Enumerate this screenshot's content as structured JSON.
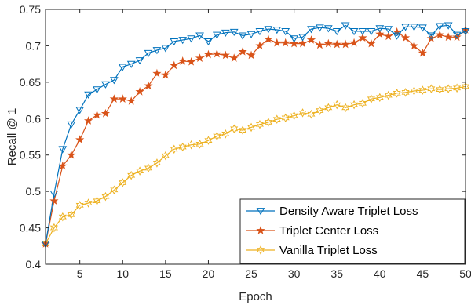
{
  "chart_data": {
    "type": "line",
    "xlabel": "Epoch",
    "ylabel": "Recall @ 1",
    "xlim": [
      1,
      50
    ],
    "ylim": [
      0.4,
      0.75
    ],
    "xticks": [
      5,
      10,
      15,
      20,
      25,
      30,
      35,
      40,
      45,
      50
    ],
    "yticks": [
      0.4,
      0.45,
      0.5,
      0.55,
      0.6,
      0.65,
      0.7,
      0.75
    ],
    "ytick_labels": [
      "0.4",
      "0.45",
      "0.5",
      "0.55",
      "0.6",
      "0.65",
      "0.7",
      "0.75"
    ],
    "grid": false,
    "legend_position": "bottom-right",
    "x": [
      1,
      2,
      3,
      4,
      5,
      6,
      7,
      8,
      9,
      10,
      11,
      12,
      13,
      14,
      15,
      16,
      17,
      18,
      19,
      20,
      21,
      22,
      23,
      24,
      25,
      26,
      27,
      28,
      29,
      30,
      31,
      32,
      33,
      34,
      35,
      36,
      37,
      38,
      39,
      40,
      41,
      42,
      43,
      44,
      45,
      46,
      47,
      48,
      49,
      50
    ],
    "series": [
      {
        "name": "Density Aware Triplet Loss",
        "color": "#0072BD",
        "marker": "triangle-down",
        "values": [
          0.428,
          0.497,
          0.558,
          0.592,
          0.612,
          0.633,
          0.64,
          0.647,
          0.653,
          0.671,
          0.675,
          0.68,
          0.69,
          0.694,
          0.697,
          0.706,
          0.708,
          0.71,
          0.714,
          0.706,
          0.715,
          0.718,
          0.719,
          0.714,
          0.716,
          0.72,
          0.723,
          0.722,
          0.72,
          0.71,
          0.712,
          0.723,
          0.725,
          0.724,
          0.72,
          0.728,
          0.72,
          0.72,
          0.72,
          0.724,
          0.723,
          0.714,
          0.726,
          0.726,
          0.725,
          0.714,
          0.727,
          0.728,
          0.715,
          0.72
        ]
      },
      {
        "name": "Triplet Center Loss",
        "color": "#D95319",
        "marker": "star",
        "values": [
          0.428,
          0.487,
          0.535,
          0.55,
          0.571,
          0.597,
          0.605,
          0.607,
          0.627,
          0.627,
          0.624,
          0.637,
          0.645,
          0.662,
          0.66,
          0.673,
          0.679,
          0.678,
          0.683,
          0.688,
          0.689,
          0.687,
          0.683,
          0.692,
          0.687,
          0.7,
          0.709,
          0.704,
          0.704,
          0.703,
          0.703,
          0.708,
          0.701,
          0.703,
          0.702,
          0.702,
          0.704,
          0.711,
          0.703,
          0.716,
          0.713,
          0.719,
          0.711,
          0.7,
          0.69,
          0.71,
          0.715,
          0.712,
          0.712,
          0.722
        ]
      },
      {
        "name": "Vanilla Triplet Loss",
        "color": "#EDB120",
        "marker": "hexagram",
        "values": [
          0.428,
          0.45,
          0.465,
          0.468,
          0.481,
          0.484,
          0.487,
          0.493,
          0.502,
          0.512,
          0.522,
          0.528,
          0.532,
          0.539,
          0.549,
          0.558,
          0.561,
          0.564,
          0.565,
          0.57,
          0.576,
          0.579,
          0.586,
          0.584,
          0.588,
          0.592,
          0.595,
          0.599,
          0.601,
          0.604,
          0.608,
          0.606,
          0.611,
          0.615,
          0.619,
          0.615,
          0.619,
          0.621,
          0.627,
          0.629,
          0.632,
          0.635,
          0.636,
          0.638,
          0.639,
          0.641,
          0.64,
          0.641,
          0.642,
          0.644
        ]
      }
    ]
  }
}
